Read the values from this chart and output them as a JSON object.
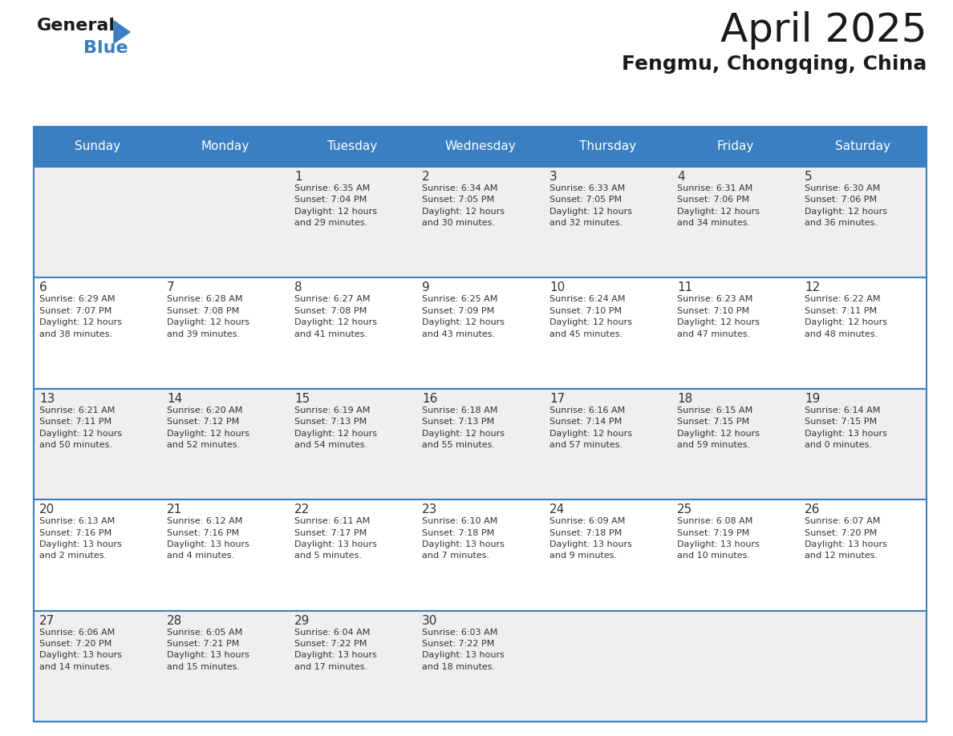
{
  "title": "April 2025",
  "subtitle": "Fengmu, Chongqing, China",
  "days_of_week": [
    "Sunday",
    "Monday",
    "Tuesday",
    "Wednesday",
    "Thursday",
    "Friday",
    "Saturday"
  ],
  "header_bg_color": "#3a7fc1",
  "header_text_color": "#ffffff",
  "cell_bg_even": "#efefef",
  "cell_bg_odd": "#ffffff",
  "border_color": "#3a7fc1",
  "day_number_color": "#333333",
  "info_text_color": "#333333",
  "title_color": "#1a1a1a",
  "subtitle_color": "#1a1a1a",
  "logo_general_color": "#1a1a1a",
  "logo_blue_color": "#3a7fc1",
  "weeks": [
    [
      {
        "day": null,
        "info": null
      },
      {
        "day": null,
        "info": null
      },
      {
        "day": 1,
        "info": "Sunrise: 6:35 AM\nSunset: 7:04 PM\nDaylight: 12 hours\nand 29 minutes."
      },
      {
        "day": 2,
        "info": "Sunrise: 6:34 AM\nSunset: 7:05 PM\nDaylight: 12 hours\nand 30 minutes."
      },
      {
        "day": 3,
        "info": "Sunrise: 6:33 AM\nSunset: 7:05 PM\nDaylight: 12 hours\nand 32 minutes."
      },
      {
        "day": 4,
        "info": "Sunrise: 6:31 AM\nSunset: 7:06 PM\nDaylight: 12 hours\nand 34 minutes."
      },
      {
        "day": 5,
        "info": "Sunrise: 6:30 AM\nSunset: 7:06 PM\nDaylight: 12 hours\nand 36 minutes."
      }
    ],
    [
      {
        "day": 6,
        "info": "Sunrise: 6:29 AM\nSunset: 7:07 PM\nDaylight: 12 hours\nand 38 minutes."
      },
      {
        "day": 7,
        "info": "Sunrise: 6:28 AM\nSunset: 7:08 PM\nDaylight: 12 hours\nand 39 minutes."
      },
      {
        "day": 8,
        "info": "Sunrise: 6:27 AM\nSunset: 7:08 PM\nDaylight: 12 hours\nand 41 minutes."
      },
      {
        "day": 9,
        "info": "Sunrise: 6:25 AM\nSunset: 7:09 PM\nDaylight: 12 hours\nand 43 minutes."
      },
      {
        "day": 10,
        "info": "Sunrise: 6:24 AM\nSunset: 7:10 PM\nDaylight: 12 hours\nand 45 minutes."
      },
      {
        "day": 11,
        "info": "Sunrise: 6:23 AM\nSunset: 7:10 PM\nDaylight: 12 hours\nand 47 minutes."
      },
      {
        "day": 12,
        "info": "Sunrise: 6:22 AM\nSunset: 7:11 PM\nDaylight: 12 hours\nand 48 minutes."
      }
    ],
    [
      {
        "day": 13,
        "info": "Sunrise: 6:21 AM\nSunset: 7:11 PM\nDaylight: 12 hours\nand 50 minutes."
      },
      {
        "day": 14,
        "info": "Sunrise: 6:20 AM\nSunset: 7:12 PM\nDaylight: 12 hours\nand 52 minutes."
      },
      {
        "day": 15,
        "info": "Sunrise: 6:19 AM\nSunset: 7:13 PM\nDaylight: 12 hours\nand 54 minutes."
      },
      {
        "day": 16,
        "info": "Sunrise: 6:18 AM\nSunset: 7:13 PM\nDaylight: 12 hours\nand 55 minutes."
      },
      {
        "day": 17,
        "info": "Sunrise: 6:16 AM\nSunset: 7:14 PM\nDaylight: 12 hours\nand 57 minutes."
      },
      {
        "day": 18,
        "info": "Sunrise: 6:15 AM\nSunset: 7:15 PM\nDaylight: 12 hours\nand 59 minutes."
      },
      {
        "day": 19,
        "info": "Sunrise: 6:14 AM\nSunset: 7:15 PM\nDaylight: 13 hours\nand 0 minutes."
      }
    ],
    [
      {
        "day": 20,
        "info": "Sunrise: 6:13 AM\nSunset: 7:16 PM\nDaylight: 13 hours\nand 2 minutes."
      },
      {
        "day": 21,
        "info": "Sunrise: 6:12 AM\nSunset: 7:16 PM\nDaylight: 13 hours\nand 4 minutes."
      },
      {
        "day": 22,
        "info": "Sunrise: 6:11 AM\nSunset: 7:17 PM\nDaylight: 13 hours\nand 5 minutes."
      },
      {
        "day": 23,
        "info": "Sunrise: 6:10 AM\nSunset: 7:18 PM\nDaylight: 13 hours\nand 7 minutes."
      },
      {
        "day": 24,
        "info": "Sunrise: 6:09 AM\nSunset: 7:18 PM\nDaylight: 13 hours\nand 9 minutes."
      },
      {
        "day": 25,
        "info": "Sunrise: 6:08 AM\nSunset: 7:19 PM\nDaylight: 13 hours\nand 10 minutes."
      },
      {
        "day": 26,
        "info": "Sunrise: 6:07 AM\nSunset: 7:20 PM\nDaylight: 13 hours\nand 12 minutes."
      }
    ],
    [
      {
        "day": 27,
        "info": "Sunrise: 6:06 AM\nSunset: 7:20 PM\nDaylight: 13 hours\nand 14 minutes."
      },
      {
        "day": 28,
        "info": "Sunrise: 6:05 AM\nSunset: 7:21 PM\nDaylight: 13 hours\nand 15 minutes."
      },
      {
        "day": 29,
        "info": "Sunrise: 6:04 AM\nSunset: 7:22 PM\nDaylight: 13 hours\nand 17 minutes."
      },
      {
        "day": 30,
        "info": "Sunrise: 6:03 AM\nSunset: 7:22 PM\nDaylight: 13 hours\nand 18 minutes."
      },
      {
        "day": null,
        "info": null
      },
      {
        "day": null,
        "info": null
      },
      {
        "day": null,
        "info": null
      }
    ]
  ]
}
